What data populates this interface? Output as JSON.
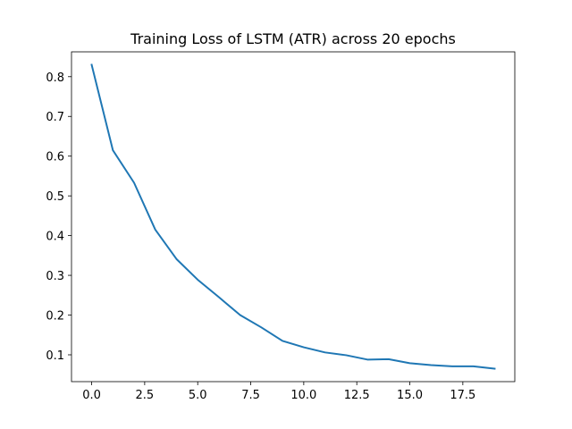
{
  "chart_data": {
    "type": "line",
    "title": "Training Loss of LSTM (ATR) across 20 epochs",
    "xlabel": "",
    "ylabel": "",
    "xlim": [
      -0.95,
      19.95
    ],
    "ylim": [
      0.0325,
      0.8625
    ],
    "grid": false,
    "x_ticks": [
      0.0,
      2.5,
      5.0,
      7.5,
      10.0,
      12.5,
      15.0,
      17.5
    ],
    "x_tick_labels": [
      "0.0",
      "2.5",
      "5.0",
      "7.5",
      "10.0",
      "12.5",
      "15.0",
      "17.5"
    ],
    "y_ticks": [
      0.1,
      0.2,
      0.3,
      0.4,
      0.5,
      0.6,
      0.7,
      0.8
    ],
    "y_tick_labels": [
      "0.1",
      "0.2",
      "0.3",
      "0.4",
      "0.5",
      "0.6",
      "0.7",
      "0.8"
    ],
    "series": [
      {
        "color": "#1f77b4",
        "x": [
          0,
          1,
          2,
          3,
          4,
          5,
          6,
          7,
          8,
          9,
          10,
          11,
          12,
          13,
          14,
          15,
          16,
          17,
          18,
          19
        ],
        "y": [
          0.83,
          0.615,
          0.533,
          0.415,
          0.341,
          0.289,
          0.245,
          0.2,
          0.169,
          0.135,
          0.119,
          0.106,
          0.099,
          0.088,
          0.089,
          0.079,
          0.074,
          0.071,
          0.071,
          0.065
        ]
      }
    ]
  }
}
